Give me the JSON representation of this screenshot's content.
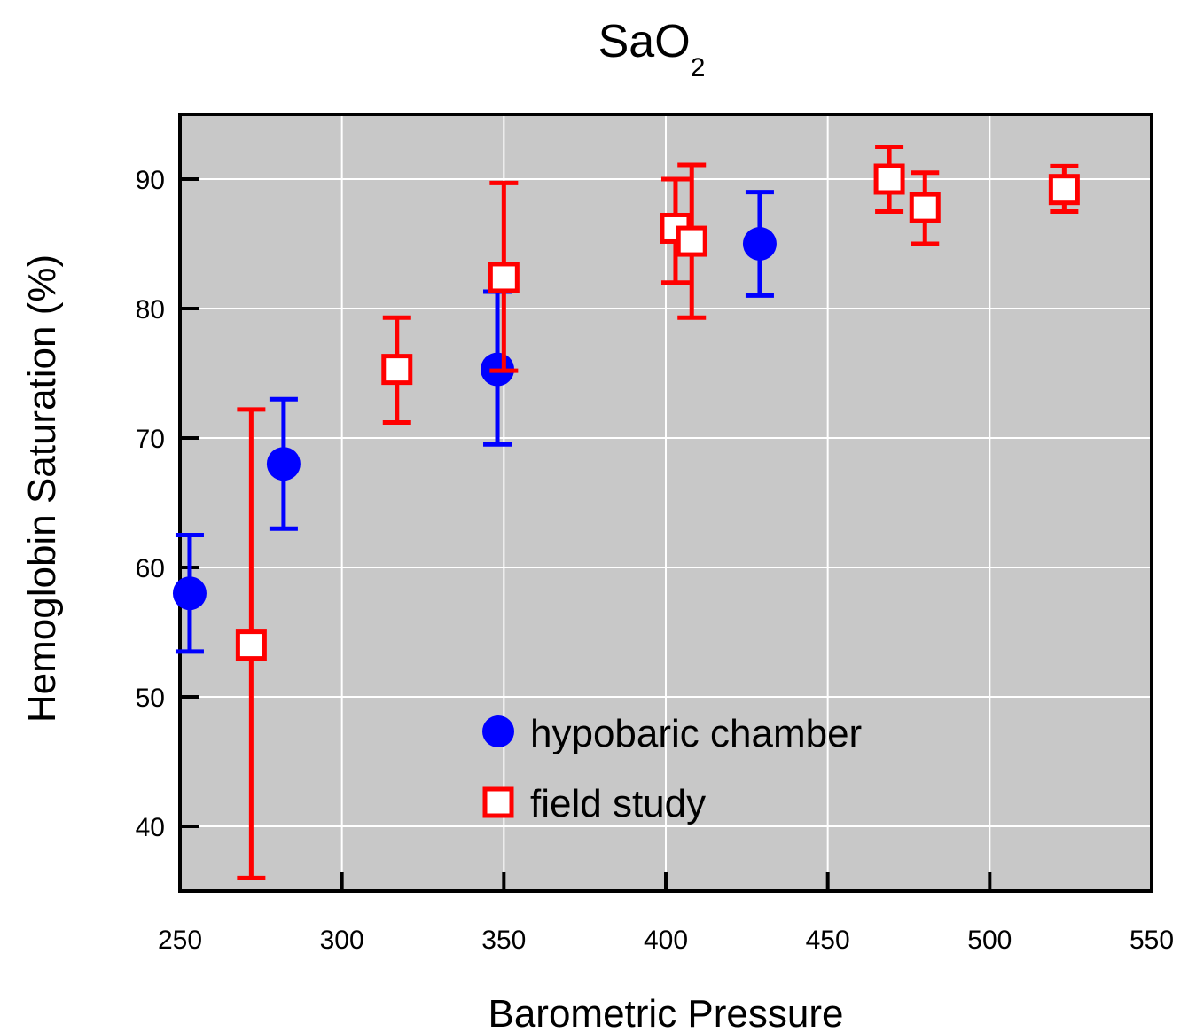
{
  "chart_data": {
    "type": "scatter",
    "title": "SaO",
    "title_subscript": "2",
    "xlabel": "Barometric Pressure",
    "ylabel": "Hemoglobin Saturation (%)",
    "xlim": [
      250,
      550
    ],
    "ylim": [
      35,
      95
    ],
    "xticks": [
      250,
      300,
      350,
      400,
      450,
      500,
      550
    ],
    "yticks": [
      40,
      50,
      60,
      70,
      80,
      90
    ],
    "grid": true,
    "plot_background": "#c8c8c8",
    "legend_position": "bottom-right",
    "series": [
      {
        "name": "hypobaric chamber",
        "marker": "filled-circle",
        "color": "#0000ff",
        "points": [
          {
            "x": 253,
            "y": 58,
            "err_low": 53.5,
            "err_high": 62.5
          },
          {
            "x": 282,
            "y": 68,
            "err_low": 63,
            "err_high": 73
          },
          {
            "x": 348,
            "y": 75.3,
            "err_low": 69.5,
            "err_high": 81.3
          },
          {
            "x": 429,
            "y": 85,
            "err_low": 81,
            "err_high": 89
          }
        ]
      },
      {
        "name": "field study",
        "marker": "open-square",
        "color": "#ff0000",
        "points": [
          {
            "x": 272,
            "y": 54,
            "err_low": 36,
            "err_high": 72.2
          },
          {
            "x": 317,
            "y": 75.3,
            "err_low": 71.2,
            "err_high": 79.3
          },
          {
            "x": 350,
            "y": 82.4,
            "err_low": 75.2,
            "err_high": 89.7
          },
          {
            "x": 403,
            "y": 86.2,
            "err_low": 82,
            "err_high": 90
          },
          {
            "x": 408,
            "y": 85.2,
            "err_low": 79.3,
            "err_high": 91.1
          },
          {
            "x": 469,
            "y": 90,
            "err_low": 87.5,
            "err_high": 92.5
          },
          {
            "x": 480,
            "y": 87.8,
            "err_low": 85,
            "err_high": 90.5
          },
          {
            "x": 523,
            "y": 89.2,
            "err_low": 87.5,
            "err_high": 91
          }
        ]
      }
    ]
  }
}
